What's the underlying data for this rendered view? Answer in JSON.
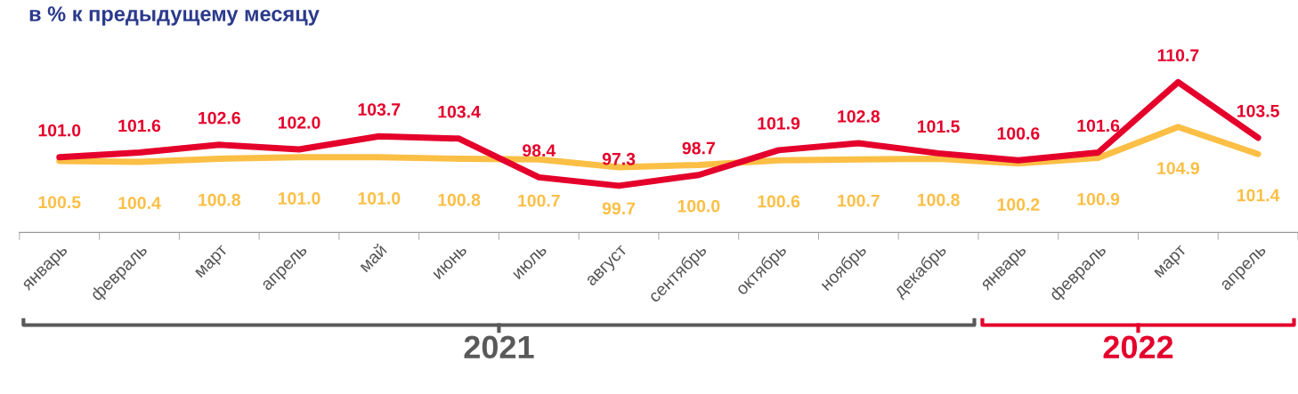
{
  "chart_data": {
    "type": "line",
    "title": "в % к предыдущему месяцу",
    "categories": [
      "январь",
      "февраль",
      "март",
      "апрель",
      "май",
      "июнь",
      "июль",
      "август",
      "сентябрь",
      "октябрь",
      "ноябрь",
      "декабрь",
      "январь",
      "февраль",
      "март",
      "апрель"
    ],
    "series": [
      {
        "color": "#e4002b",
        "values": [
          101.0,
          101.6,
          102.6,
          102.0,
          103.7,
          103.4,
          98.4,
          97.3,
          98.7,
          101.9,
          102.8,
          101.5,
          100.6,
          101.6,
          110.7,
          103.5
        ],
        "value_labels": [
          "101.0",
          "101.6",
          "102.6",
          "102.0",
          "103.7",
          "103.4",
          "98.4",
          "97.3",
          "98.7",
          "101.9",
          "102.8",
          "101.5",
          "100.6",
          "101.6",
          "110.7",
          "103.5"
        ]
      },
      {
        "color": "#fbbf45",
        "values": [
          100.5,
          100.4,
          100.8,
          101.0,
          101.0,
          100.8,
          100.7,
          99.7,
          100.0,
          100.6,
          100.7,
          100.8,
          100.2,
          100.9,
          104.9,
          101.4
        ],
        "value_labels": [
          "100.5",
          "100.4",
          "100.8",
          "101.0",
          "101.0",
          "100.8",
          "100.7",
          "99.7",
          "100.0",
          "100.6",
          "100.7",
          "100.8",
          "100.2",
          "100.9",
          "104.9",
          "101.4"
        ]
      }
    ],
    "grid": false,
    "legend": false,
    "marker": "none",
    "line_style": "solid",
    "annotations": [
      "2021",
      "2022"
    ]
  }
}
